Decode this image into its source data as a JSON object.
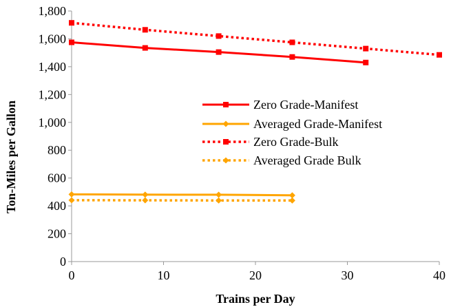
{
  "chart_data": {
    "type": "line",
    "title": "",
    "xlabel": "Trains per Day",
    "ylabel": "Ton-Miles per Gallon",
    "xlim": [
      0,
      40
    ],
    "ylim": [
      0,
      1800
    ],
    "xticks": [
      0,
      10,
      20,
      30,
      40
    ],
    "yticks": [
      0,
      200,
      400,
      600,
      800,
      1000,
      1200,
      1400,
      1600,
      1800
    ],
    "xtick_labels": [
      "0",
      "10",
      "20",
      "30",
      "40"
    ],
    "ytick_labels": [
      "0",
      "200",
      "400",
      "600",
      "800",
      "1,000",
      "1,200",
      "1,400",
      "1,600",
      "1,800"
    ],
    "grid": false,
    "legend_position": "center-right",
    "series": [
      {
        "name": "Zero Grade-Manifest",
        "color": "#ff0000",
        "line_style": "solid",
        "marker": "square",
        "x": [
          0,
          8,
          16,
          24,
          32
        ],
        "y": [
          1575,
          1535,
          1505,
          1470,
          1430
        ]
      },
      {
        "name": "Averaged Grade-Manifest",
        "color": "#ffa500",
        "line_style": "solid",
        "marker": "diamond",
        "x": [
          0,
          8,
          16,
          24
        ],
        "y": [
          483,
          481,
          480,
          476
        ]
      },
      {
        "name": "Zero Grade-Bulk",
        "color": "#ff0000",
        "line_style": "dotted",
        "marker": "square",
        "x": [
          0,
          8,
          16,
          24,
          32,
          40
        ],
        "y": [
          1715,
          1665,
          1620,
          1575,
          1530,
          1485
        ]
      },
      {
        "name": "Averaged Grade Bulk",
        "color": "#ffa500",
        "line_style": "dotted",
        "marker": "diamond",
        "x": [
          0,
          8,
          16,
          24
        ],
        "y": [
          441,
          440,
          439,
          439
        ]
      }
    ]
  }
}
